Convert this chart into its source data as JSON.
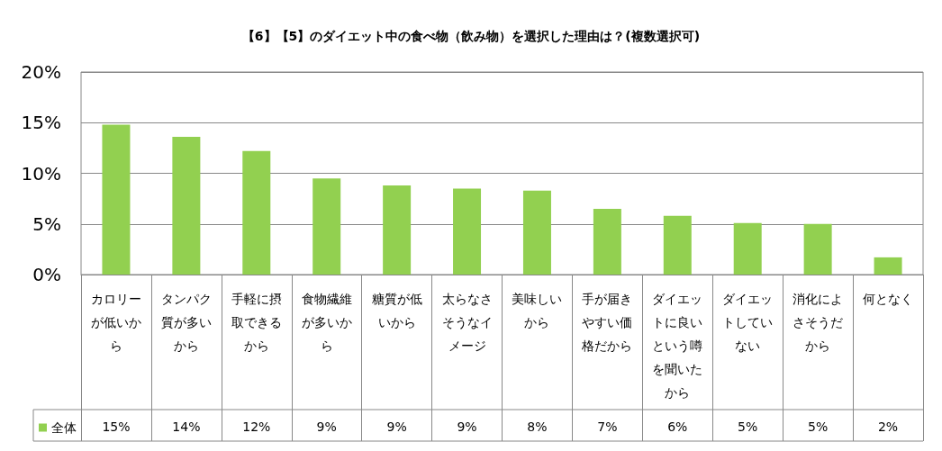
{
  "chart_data": {
    "type": "bar",
    "title": "【6】【5】のダイエット中の食べ物（飲み物）を選択した理由は？(複数選択可)",
    "categories": [
      "カロリーが低いから",
      "タンパク質が多いから",
      "手軽に摂取できるから",
      "食物繊維が多いから",
      "糖質が低いから",
      "太らなさそうなイメージ",
      "美味しいから",
      "手が届きやすい価格だから",
      "ダイエットに良いという噂を聞いたから",
      "ダイエットしていない",
      "消化によさそうだから",
      "何となく"
    ],
    "series": [
      {
        "name": "全体",
        "color": "#92d050",
        "values": [
          14.8,
          13.6,
          12.2,
          9.5,
          8.8,
          8.5,
          8.3,
          6.5,
          5.8,
          5.1,
          5.0,
          1.7
        ],
        "value_labels": [
          "15%",
          "14%",
          "12%",
          "9%",
          "9%",
          "9%",
          "8%",
          "7%",
          "6%",
          "5%",
          "5%",
          "2%"
        ]
      }
    ],
    "ylim": [
      0,
      20
    ],
    "yticks": [
      {
        "value": 0,
        "label": "0%"
      },
      {
        "value": 5,
        "label": "5%"
      },
      {
        "value": 10,
        "label": "10%"
      },
      {
        "value": 15,
        "label": "15%"
      },
      {
        "value": 20,
        "label": "20%"
      }
    ],
    "grid": "y",
    "legend": "bottom left"
  }
}
